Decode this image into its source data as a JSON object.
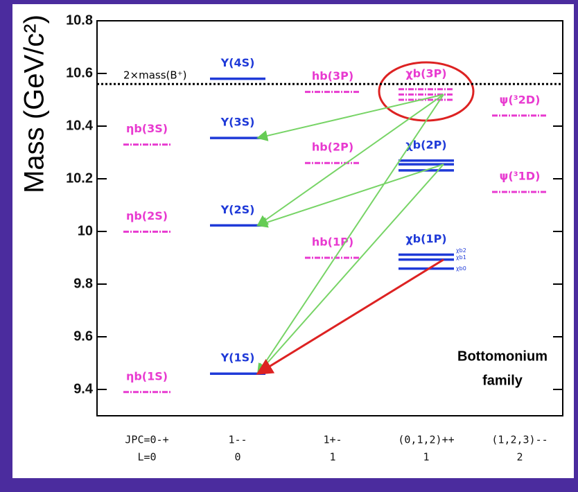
{
  "chart_data": {
    "type": "level",
    "y_label": "Mass (GeV/c²)",
    "ylim": [
      9.3,
      10.8
    ],
    "yticks": [
      9.4,
      9.6,
      9.8,
      10,
      10.2,
      10.4,
      10.6,
      10.8
    ],
    "columns": [
      {
        "jpc": "JPC=0-+",
        "l": "L=0"
      },
      {
        "jpc": "1--",
        "l": "0"
      },
      {
        "jpc": "1+-",
        "l": "1"
      },
      {
        "jpc": "(0,1,2)++",
        "l": "1"
      },
      {
        "jpc": "(1,2,3)--",
        "l": "2"
      }
    ],
    "levels": [
      {
        "name": "ηb(1S)",
        "column": 0,
        "mass": [
          9.39
        ],
        "color": "#e83ad0",
        "style": "dashed"
      },
      {
        "name": "ηb(2S)",
        "column": 0,
        "mass": [
          9.999
        ],
        "color": "#e83ad0",
        "style": "dashed"
      },
      {
        "name": "ηb(3S)",
        "column": 0,
        "mass": [
          10.33
        ],
        "color": "#e83ad0",
        "style": "dashed"
      },
      {
        "name": "Υ(1S)",
        "column": 1,
        "mass": [
          9.46
        ],
        "color": "#1f3ad8",
        "style": "solid"
      },
      {
        "name": "Υ(2S)",
        "column": 1,
        "mass": [
          10.023
        ],
        "color": "#1f3ad8",
        "style": "solid"
      },
      {
        "name": "Υ(3S)",
        "column": 1,
        "mass": [
          10.355
        ],
        "color": "#1f3ad8",
        "style": "solid"
      },
      {
        "name": "Υ(4S)",
        "column": 1,
        "mass": [
          10.58
        ],
        "color": "#1f3ad8",
        "style": "solid"
      },
      {
        "name": "hb(1P)",
        "column": 2,
        "mass": [
          9.9
        ],
        "color": "#e83ad0",
        "style": "dashed"
      },
      {
        "name": "hb(2P)",
        "column": 2,
        "mass": [
          10.26
        ],
        "color": "#e83ad0",
        "style": "dashed"
      },
      {
        "name": "hb(3P)",
        "column": 2,
        "mass": [
          10.53
        ],
        "color": "#e83ad0",
        "style": "dashed"
      },
      {
        "name": "χb(1P)",
        "column": 3,
        "mass": [
          9.912,
          9.893,
          9.859
        ],
        "sub": [
          "χb2",
          "χb1",
          "χb0"
        ],
        "color": "#1f3ad8",
        "style": "solid"
      },
      {
        "name": "χb(2P)",
        "column": 3,
        "mass": [
          10.269,
          10.255,
          10.232
        ],
        "color": "#1f3ad8",
        "style": "solid"
      },
      {
        "name": "χb(3P)",
        "column": 3,
        "mass": [
          10.54,
          10.52,
          10.5
        ],
        "color": "#e83ad0",
        "style": "dashed"
      },
      {
        "name": "ψ(³1D)",
        "column": 4,
        "mass": [
          10.15
        ],
        "color": "#e83ad0",
        "style": "dashed"
      },
      {
        "name": "ψ(³2D)",
        "column": 4,
        "mass": [
          10.44
        ],
        "color": "#e83ad0",
        "style": "dashed"
      }
    ],
    "threshold": {
      "label": "2×mass(B⁺)",
      "mass": 10.56
    },
    "annotation": [
      "Bottomonium",
      "family"
    ]
  }
}
